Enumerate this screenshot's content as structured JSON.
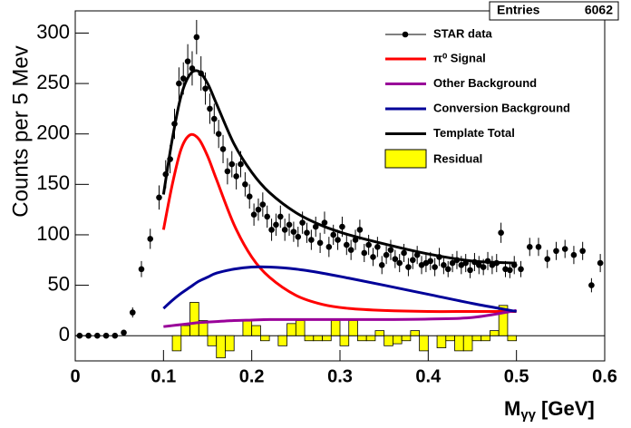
{
  "chart_data": {
    "type": "scatter",
    "y_label": "Counts per 5 Mev",
    "x_label": {
      "main": "M",
      "sub": "γγ",
      "unit": "[GeV]"
    },
    "stats": {
      "label": "Entries",
      "value": 6062
    },
    "xlim": [
      0,
      0.6
    ],
    "ylim": [
      -25,
      322
    ],
    "xticks": [
      0,
      0.1,
      0.2,
      0.3,
      0.4,
      0.5,
      0.6
    ],
    "yticks": [
      0,
      50,
      100,
      150,
      200,
      250,
      300
    ],
    "legend": "upper right",
    "series": [
      {
        "name": "STAR data",
        "color": "#000000",
        "x": [
          0.005,
          0.015,
          0.025,
          0.035,
          0.045,
          0.055,
          0.065,
          0.075,
          0.085,
          0.095,
          0.1025,
          0.1075,
          0.1125,
          0.1175,
          0.1225,
          0.1275,
          0.1325,
          0.1375,
          0.1425,
          0.1475,
          0.1525,
          0.1575,
          0.1625,
          0.1675,
          0.1725,
          0.1775,
          0.1825,
          0.1875,
          0.1925,
          0.1975,
          0.2025,
          0.2075,
          0.2125,
          0.2175,
          0.2225,
          0.2275,
          0.2325,
          0.2375,
          0.2425,
          0.2475,
          0.2525,
          0.2575,
          0.2625,
          0.2675,
          0.2725,
          0.2775,
          0.2825,
          0.2875,
          0.2925,
          0.2975,
          0.3025,
          0.3075,
          0.3125,
          0.3175,
          0.3225,
          0.3275,
          0.3325,
          0.3375,
          0.3425,
          0.3475,
          0.3525,
          0.3575,
          0.3625,
          0.3675,
          0.3725,
          0.3775,
          0.3825,
          0.3875,
          0.3925,
          0.3975,
          0.4025,
          0.4075,
          0.4125,
          0.4175,
          0.4225,
          0.4275,
          0.4325,
          0.4375,
          0.4425,
          0.4475,
          0.4525,
          0.4575,
          0.4625,
          0.4675,
          0.4725,
          0.4775,
          0.4825,
          0.4875,
          0.4925,
          0.4975,
          0.505,
          0.515,
          0.525,
          0.535,
          0.545,
          0.555,
          0.565,
          0.575,
          0.585,
          0.595
        ],
        "values": [
          0,
          0,
          0,
          0,
          0,
          3,
          23,
          66,
          96,
          137,
          160,
          175,
          210,
          250,
          255,
          272,
          265,
          296,
          260,
          245,
          225,
          215,
          200,
          185,
          163,
          170,
          158,
          170,
          150,
          138,
          120,
          125,
          130,
          118,
          105,
          110,
          118,
          105,
          110,
          103,
          98,
          112,
          102,
          95,
          108,
          92,
          112,
          88,
          100,
          95,
          108,
          90,
          85,
          95,
          105,
          82,
          90,
          78,
          88,
          70,
          80,
          85,
          76,
          72,
          82,
          68,
          75,
          80,
          70,
          72,
          74,
          68,
          78,
          70,
          66,
          72,
          75,
          70,
          72,
          65,
          73,
          70,
          68,
          74,
          70,
          72,
          102,
          66,
          65,
          70,
          66,
          88,
          88,
          76,
          84,
          86,
          80,
          84,
          50,
          72
        ],
        "errors": [
          0,
          0,
          0,
          0,
          0,
          2,
          5,
          8,
          10,
          12,
          14,
          14,
          15,
          16,
          16,
          17,
          17,
          17,
          17,
          16,
          15,
          15,
          14,
          14,
          13,
          13,
          13,
          13,
          12,
          12,
          11,
          11,
          12,
          11,
          11,
          11,
          11,
          11,
          11,
          10,
          10,
          11,
          10,
          10,
          10,
          10,
          11,
          10,
          10,
          10,
          10,
          10,
          10,
          10,
          10,
          9,
          10,
          9,
          10,
          9,
          9,
          10,
          9,
          9,
          9,
          9,
          9,
          9,
          9,
          9,
          9,
          9,
          9,
          9,
          8,
          9,
          9,
          9,
          9,
          8,
          9,
          9,
          8,
          9,
          9,
          9,
          10,
          8,
          8,
          9,
          8,
          9,
          9,
          9,
          9,
          9,
          9,
          9,
          7,
          9
        ]
      }
    ],
    "curves": {
      "x": [
        0.1,
        0.11,
        0.12,
        0.13,
        0.14,
        0.15,
        0.16,
        0.18,
        0.2,
        0.22,
        0.25,
        0.28,
        0.31,
        0.35,
        0.4,
        0.45,
        0.5
      ],
      "series": [
        {
          "name": "π⁰ Signal",
          "color": "#ff0000",
          "values": [
            105,
            150,
            185,
            199,
            195,
            178,
            155,
            110,
            78,
            58,
            40,
            31,
            27,
            25,
            24,
            24,
            24
          ]
        },
        {
          "name": "Other Background",
          "color": "#990099",
          "values": [
            9,
            10,
            11,
            12,
            13,
            13.5,
            14,
            15,
            15.5,
            16,
            16,
            16,
            16,
            16,
            16.5,
            18,
            25
          ]
        },
        {
          "name": "Conversion Background",
          "color": "#000099",
          "values": [
            27,
            35,
            42,
            48,
            54,
            58,
            62,
            66,
            68,
            68,
            66,
            62,
            57,
            50,
            41,
            32,
            24
          ]
        },
        {
          "name": "Template Total",
          "color": "#000000",
          "values": [
            140,
            195,
            238,
            259,
            262,
            250,
            230,
            190,
            162,
            142,
            122,
            109,
            100,
            91,
            81,
            74,
            72
          ]
        }
      ]
    },
    "residual": {
      "name": "Residual",
      "color": "#ffff00",
      "bins": [
        0.1,
        0.11,
        0.12,
        0.13,
        0.14,
        0.15,
        0.16,
        0.17,
        0.18,
        0.19,
        0.2,
        0.21,
        0.22,
        0.23,
        0.24,
        0.25,
        0.26,
        0.27,
        0.28,
        0.29,
        0.3,
        0.31,
        0.32,
        0.33,
        0.34,
        0.35,
        0.36,
        0.37,
        0.38,
        0.39,
        0.4,
        0.41,
        0.42,
        0.43,
        0.44,
        0.45,
        0.46,
        0.47,
        0.48,
        0.49,
        0.5
      ],
      "values": [
        0,
        -15,
        10,
        33,
        15,
        -10,
        -22,
        -15,
        0,
        15,
        10,
        -5,
        0,
        -10,
        12,
        15,
        -5,
        -5,
        -5,
        15,
        -10,
        15,
        -5,
        -5,
        5,
        -10,
        -8,
        -5,
        5,
        -15,
        0,
        -12,
        -5,
        -15,
        -15,
        -5,
        -5,
        5,
        30,
        -5
      ]
    }
  }
}
